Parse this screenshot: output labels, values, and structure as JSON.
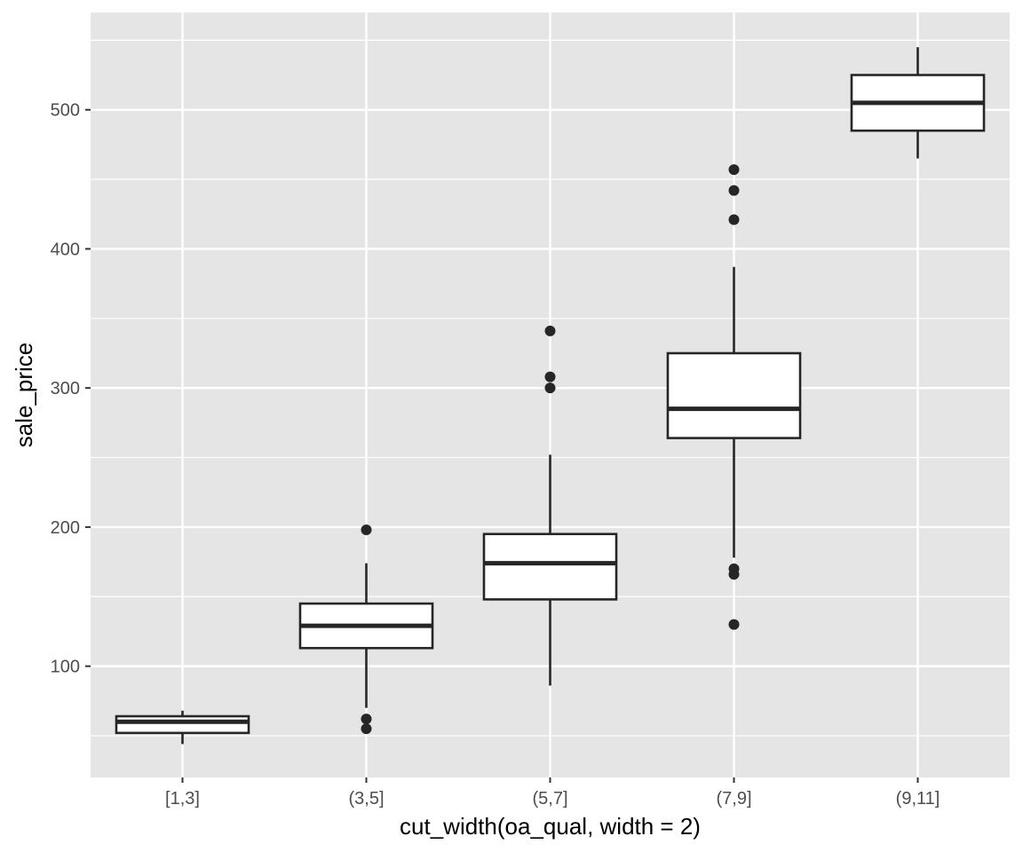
{
  "chart_data": {
    "type": "boxplot",
    "xlabel": "cut_width(oa_qual, width = 2)",
    "ylabel": "sale_price",
    "ylim": [
      20,
      570
    ],
    "y_ticks": [
      100,
      200,
      300,
      400,
      500
    ],
    "grid": true,
    "colors": {
      "panel_background": "#e5e5e5",
      "grid": "#ffffff",
      "box_fill": "#ffffff",
      "box_stroke": "#262626",
      "outlier": "#262626"
    },
    "categories": [
      "[1,3]",
      "(3,5]",
      "(5,7]",
      "(7,9]",
      "(9,11]"
    ],
    "boxes": [
      {
        "category": "[1,3]",
        "whisker_low": 44,
        "q1": 52,
        "median": 60,
        "q3": 64,
        "whisker_high": 68,
        "outliers": []
      },
      {
        "category": "(3,5]",
        "whisker_low": 70,
        "q1": 113,
        "median": 129,
        "q3": 145,
        "whisker_high": 174,
        "outliers": [
          55,
          62,
          198
        ]
      },
      {
        "category": "(5,7]",
        "whisker_low": 86,
        "q1": 148,
        "median": 174,
        "q3": 195,
        "whisker_high": 252,
        "outliers": [
          300,
          308,
          341
        ]
      },
      {
        "category": "(7,9]",
        "whisker_low": 178,
        "q1": 264,
        "median": 285,
        "q3": 325,
        "whisker_high": 387,
        "outliers": [
          130,
          166,
          170,
          421,
          442,
          457
        ]
      },
      {
        "category": "(9,11]",
        "whisker_low": 465,
        "q1": 485,
        "median": 505,
        "q3": 525,
        "whisker_high": 545,
        "outliers": []
      }
    ]
  }
}
